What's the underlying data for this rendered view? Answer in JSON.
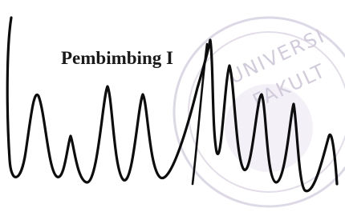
{
  "document": {
    "label": "Pembimbing I",
    "stamp": {
      "line1": "UNIVERSI",
      "line2": "FAKULT"
    }
  }
}
